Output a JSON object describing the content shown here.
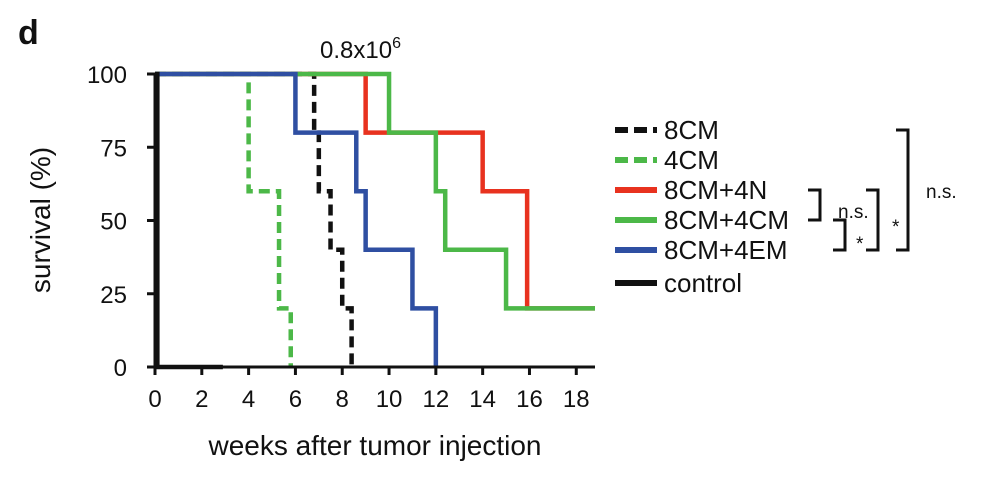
{
  "panel_label": "d",
  "colors": {
    "8CM": "#111111",
    "4CM": "#4cb848",
    "8CM+4N": "#e8321f",
    "8CM+4CM": "#4cb848",
    "8CM+4EM": "#2f4fa2",
    "control": "#111111",
    "axis": "#111111"
  },
  "chart_data": {
    "type": "line",
    "step": true,
    "title": "0.8x10",
    "title_superscript": "6",
    "xlabel": "weeks after tumor injection",
    "ylabel": "survival (%)",
    "xlim": [
      0,
      18.8
    ],
    "ylim": [
      0,
      100
    ],
    "xticks": [
      "0",
      "2",
      "4",
      "6",
      "8",
      "10",
      "12",
      "14",
      "16",
      "18"
    ],
    "yticks": [
      "0",
      "25",
      "50",
      "75",
      "100"
    ],
    "series": [
      {
        "name": "8CM",
        "color": "#111111",
        "dash": true,
        "x": [
          0,
          6.8,
          7.0,
          7.5,
          8.0,
          8.4
        ],
        "y": [
          100,
          80,
          60,
          40,
          20,
          0
        ]
      },
      {
        "name": "4CM",
        "color": "#4cb848",
        "dash": true,
        "x": [
          0,
          4.0,
          5.3,
          5.8
        ],
        "y": [
          100,
          60,
          20,
          0
        ]
      },
      {
        "name": "8CM+4N",
        "color": "#e8321f",
        "dash": false,
        "x": [
          0,
          9.0,
          10.0,
          14.0,
          15.9,
          18.8
        ],
        "y": [
          100,
          80,
          80,
          60,
          20,
          20
        ]
      },
      {
        "name": "8CM+4CM",
        "color": "#4cb848",
        "dash": false,
        "x": [
          0,
          10.0,
          12.0,
          12.4,
          15.0,
          18.8
        ],
        "y": [
          100,
          80,
          60,
          40,
          20,
          20
        ]
      },
      {
        "name": "8CM+4EM",
        "color": "#2f4fa2",
        "dash": false,
        "x": [
          0,
          6.0,
          8.6,
          9.0,
          11.0,
          12.0
        ],
        "y": [
          100,
          80,
          60,
          40,
          20,
          0
        ]
      },
      {
        "name": "control",
        "color": "#111111",
        "dash": false,
        "x": [
          0,
          0.1,
          2.9
        ],
        "y": [
          100,
          0,
          0
        ]
      }
    ],
    "legend": [
      "8CM",
      "4CM",
      "8CM+4N",
      "8CM+4CM",
      "8CM+4EM",
      "control"
    ],
    "significance": [
      {
        "between": [
          "8CM+4N",
          "8CM+4CM"
        ],
        "label": "n.s."
      },
      {
        "between": [
          "8CM+4CM",
          "8CM+4EM"
        ],
        "label": "*"
      },
      {
        "between": [
          "8CM+4N",
          "8CM+4EM"
        ],
        "label": "*"
      },
      {
        "between": [
          "8CM",
          "8CM+4EM"
        ],
        "label": "n.s."
      }
    ]
  }
}
